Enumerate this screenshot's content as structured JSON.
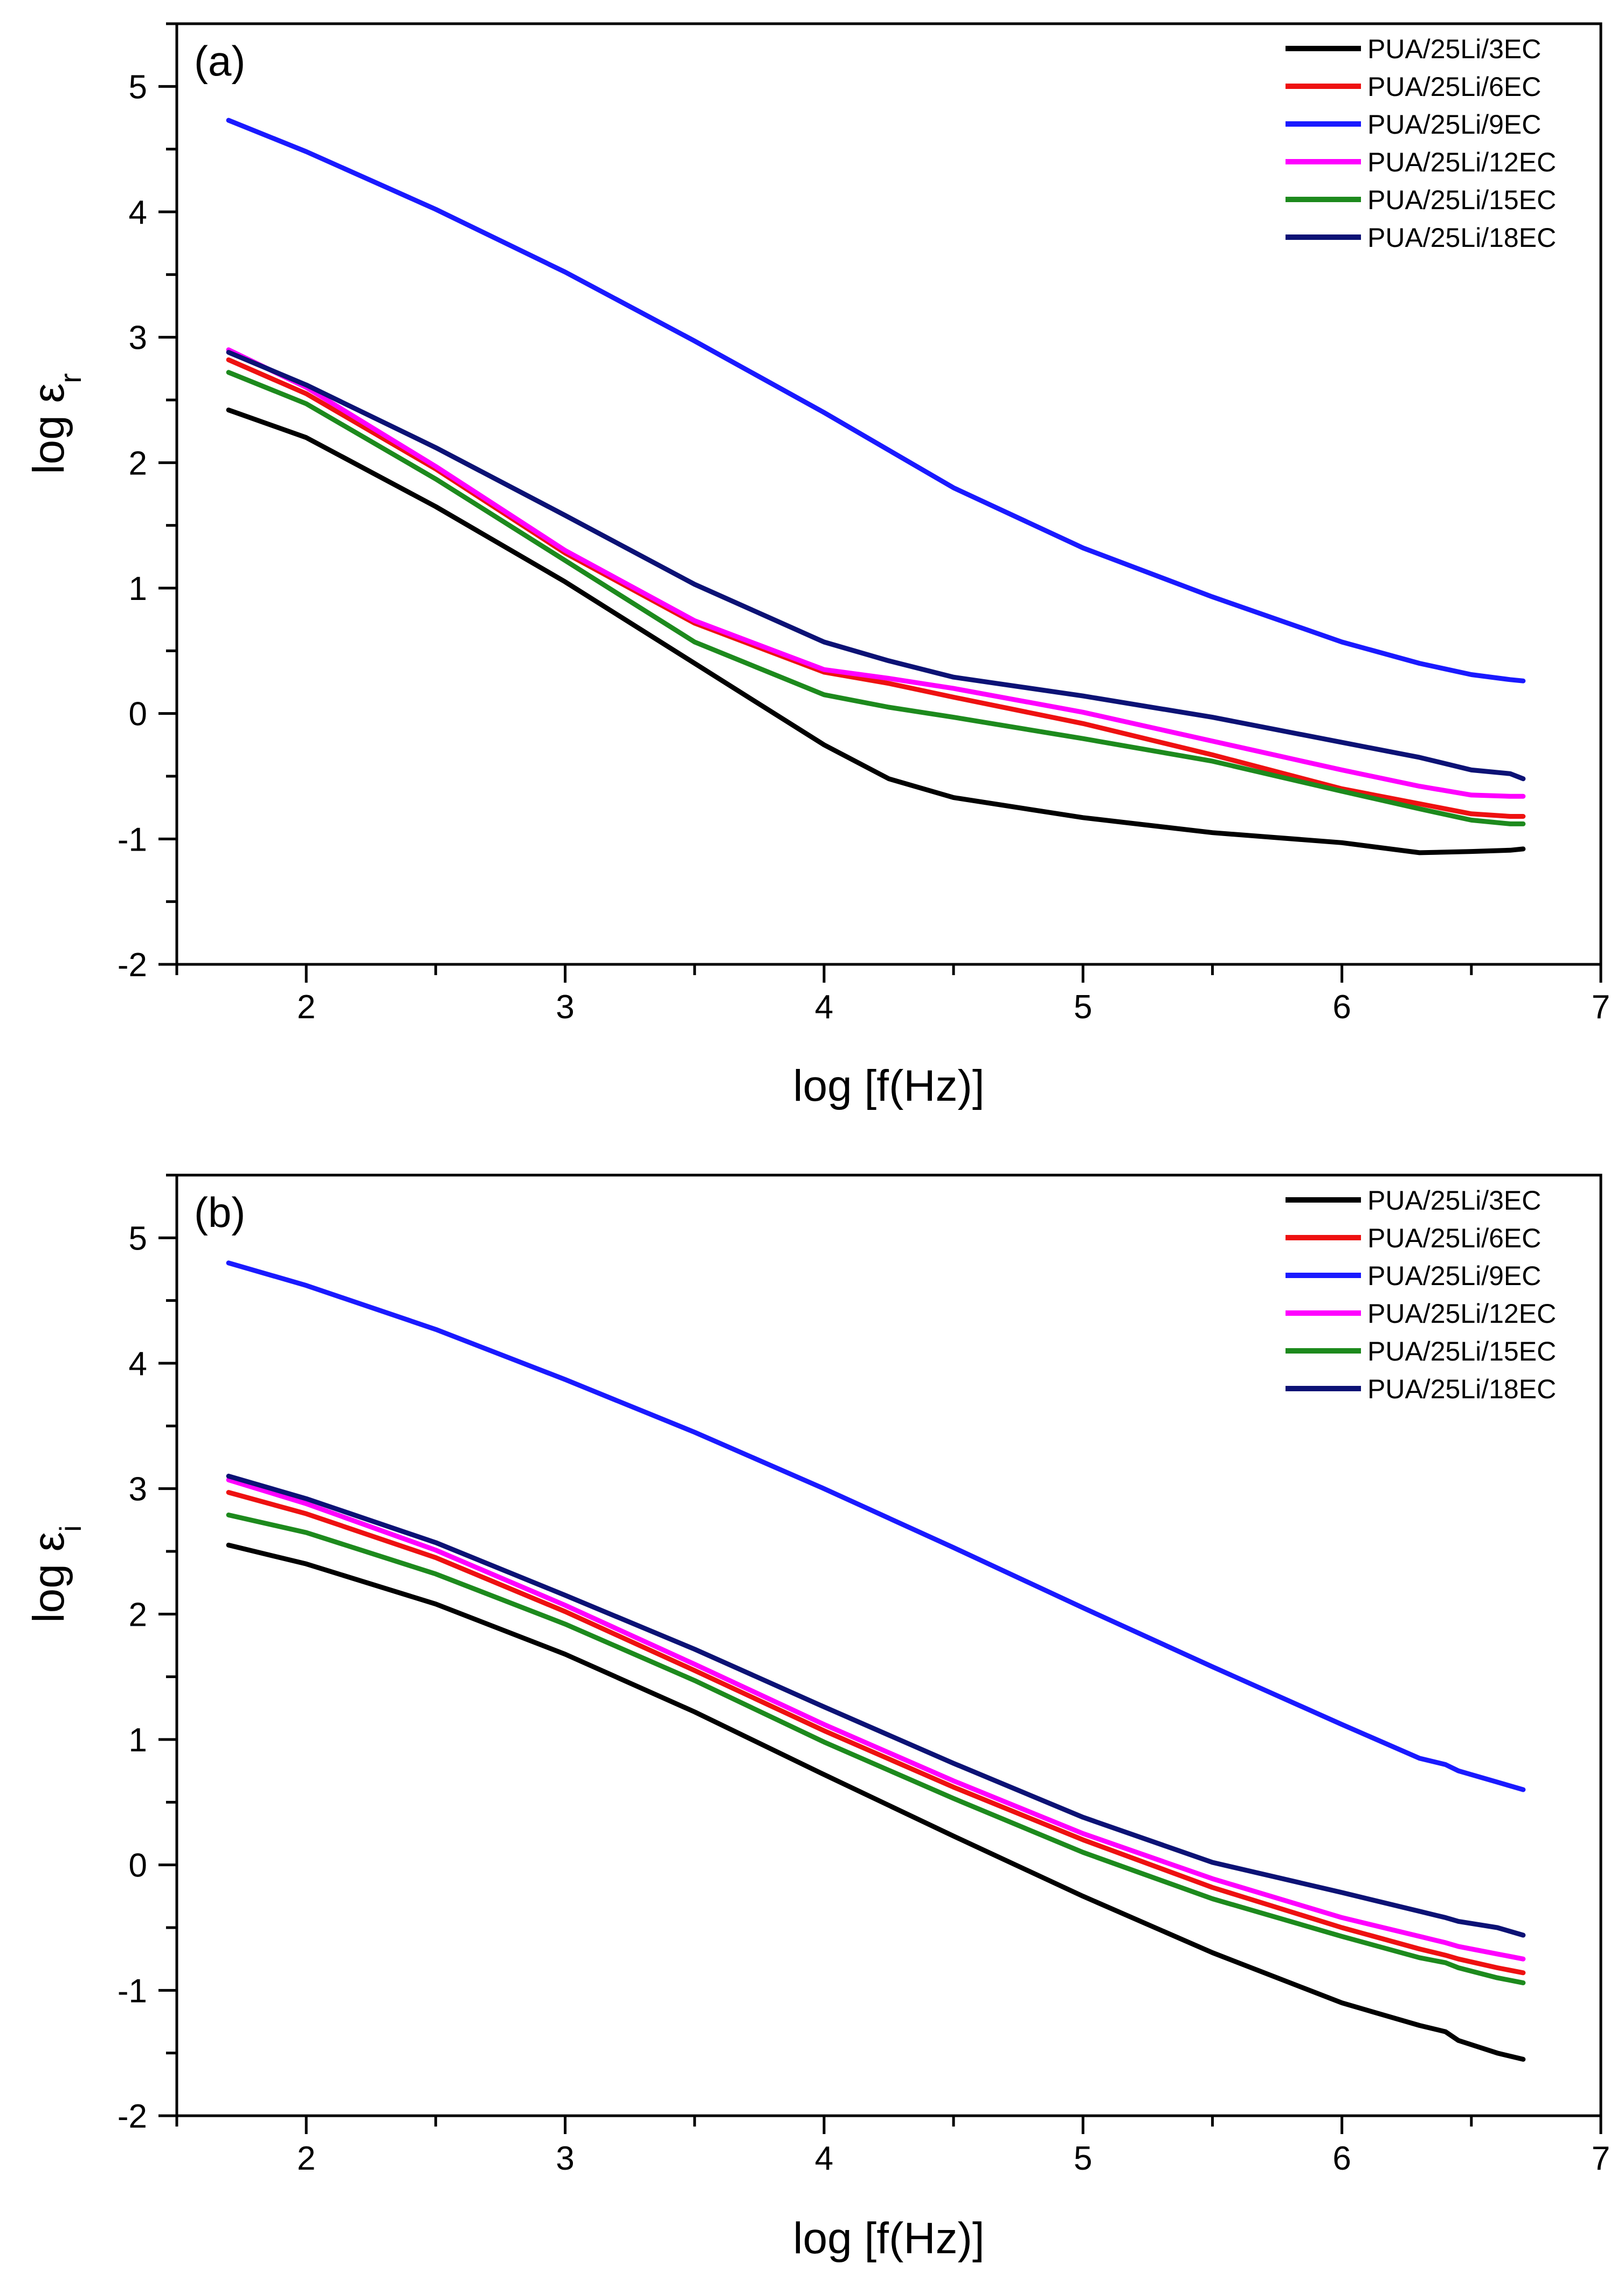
{
  "chart_data": [
    {
      "type": "line",
      "panel_label": "(a)",
      "xlabel": "log [f(Hz)]",
      "ylabel": "log ε",
      "ylabel_sub": "r",
      "xlim": [
        1.5,
        7
      ],
      "ylim": [
        -2,
        5.5
      ],
      "x_ticks": [
        2,
        3,
        4,
        5,
        6,
        7
      ],
      "y_ticks": [
        -2,
        -1,
        0,
        1,
        2,
        3,
        4,
        5
      ],
      "grid": false,
      "legend_position": "top-right",
      "x": [
        1.7,
        2.0,
        2.5,
        3.0,
        3.5,
        4.0,
        4.25,
        4.5,
        5.0,
        5.5,
        6.0,
        6.3,
        6.5,
        6.65,
        6.7
      ],
      "series": [
        {
          "name": "PUA/25Li/3EC",
          "color": "#000000",
          "values": [
            2.42,
            2.2,
            1.65,
            1.05,
            0.4,
            -0.25,
            -0.52,
            -0.67,
            -0.83,
            -0.95,
            -1.03,
            -1.11,
            -1.1,
            -1.09,
            -1.08
          ]
        },
        {
          "name": "PUA/25Li/6EC",
          "color": "#ee1111",
          "values": [
            2.82,
            2.55,
            1.95,
            1.28,
            0.72,
            0.33,
            0.24,
            0.13,
            -0.08,
            -0.33,
            -0.6,
            -0.72,
            -0.8,
            -0.82,
            -0.82
          ]
        },
        {
          "name": "PUA/25Li/9EC",
          "color": "#1a1aff",
          "values": [
            4.73,
            4.48,
            4.02,
            3.52,
            2.97,
            2.4,
            2.1,
            1.8,
            1.32,
            0.93,
            0.57,
            0.4,
            0.31,
            0.27,
            0.26
          ]
        },
        {
          "name": "PUA/25Li/12EC",
          "color": "#ff00ff",
          "values": [
            2.9,
            2.6,
            1.97,
            1.3,
            0.74,
            0.35,
            0.28,
            0.2,
            0.01,
            -0.22,
            -0.45,
            -0.58,
            -0.65,
            -0.66,
            -0.66
          ]
        },
        {
          "name": "PUA/25Li/15EC",
          "color": "#1d8a1d",
          "values": [
            2.72,
            2.47,
            1.87,
            1.22,
            0.57,
            0.15,
            0.05,
            -0.03,
            -0.2,
            -0.38,
            -0.62,
            -0.76,
            -0.85,
            -0.88,
            -0.88
          ]
        },
        {
          "name": "PUA/25Li/18EC",
          "color": "#0c1275",
          "values": [
            2.88,
            2.62,
            2.12,
            1.58,
            1.03,
            0.57,
            0.42,
            0.29,
            0.14,
            -0.03,
            -0.23,
            -0.35,
            -0.45,
            -0.48,
            -0.52
          ]
        }
      ]
    },
    {
      "type": "line",
      "panel_label": "(b)",
      "xlabel": "log [f(Hz)]",
      "ylabel": "log ε",
      "ylabel_sub": "i",
      "xlim": [
        1.5,
        7
      ],
      "ylim": [
        -2,
        5.5
      ],
      "x_ticks": [
        2,
        3,
        4,
        5,
        6,
        7
      ],
      "y_ticks": [
        -2,
        -1,
        0,
        1,
        2,
        3,
        4,
        5
      ],
      "grid": false,
      "legend_position": "top-right",
      "x": [
        1.7,
        2.0,
        2.5,
        3.0,
        3.5,
        4.0,
        4.5,
        5.0,
        5.5,
        6.0,
        6.3,
        6.4,
        6.45,
        6.6,
        6.7
      ],
      "series": [
        {
          "name": "PUA/25Li/3EC",
          "color": "#000000",
          "values": [
            2.55,
            2.4,
            2.08,
            1.68,
            1.22,
            0.72,
            0.23,
            -0.25,
            -0.7,
            -1.1,
            -1.28,
            -1.33,
            -1.4,
            -1.5,
            -1.55
          ]
        },
        {
          "name": "PUA/25Li/6EC",
          "color": "#ee1111",
          "values": [
            2.97,
            2.8,
            2.45,
            2.02,
            1.55,
            1.07,
            0.62,
            0.2,
            -0.18,
            -0.5,
            -0.67,
            -0.72,
            -0.75,
            -0.82,
            -0.86
          ]
        },
        {
          "name": "PUA/25Li/9EC",
          "color": "#1a1aff",
          "values": [
            4.8,
            4.62,
            4.27,
            3.87,
            3.45,
            3.0,
            2.53,
            2.05,
            1.58,
            1.12,
            0.85,
            0.8,
            0.75,
            0.66,
            0.6
          ]
        },
        {
          "name": "PUA/25Li/12EC",
          "color": "#ff00ff",
          "values": [
            3.07,
            2.88,
            2.51,
            2.07,
            1.6,
            1.12,
            0.67,
            0.25,
            -0.11,
            -0.42,
            -0.57,
            -0.62,
            -0.65,
            -0.71,
            -0.75
          ]
        },
        {
          "name": "PUA/25Li/15EC",
          "color": "#1d8a1d",
          "values": [
            2.79,
            2.65,
            2.32,
            1.92,
            1.47,
            0.98,
            0.53,
            0.1,
            -0.27,
            -0.57,
            -0.74,
            -0.78,
            -0.82,
            -0.9,
            -0.94
          ]
        },
        {
          "name": "PUA/25Li/18EC",
          "color": "#0c1275",
          "values": [
            3.1,
            2.92,
            2.57,
            2.15,
            1.72,
            1.26,
            0.81,
            0.38,
            0.02,
            -0.22,
            -0.37,
            -0.42,
            -0.45,
            -0.5,
            -0.56
          ]
        }
      ]
    }
  ]
}
